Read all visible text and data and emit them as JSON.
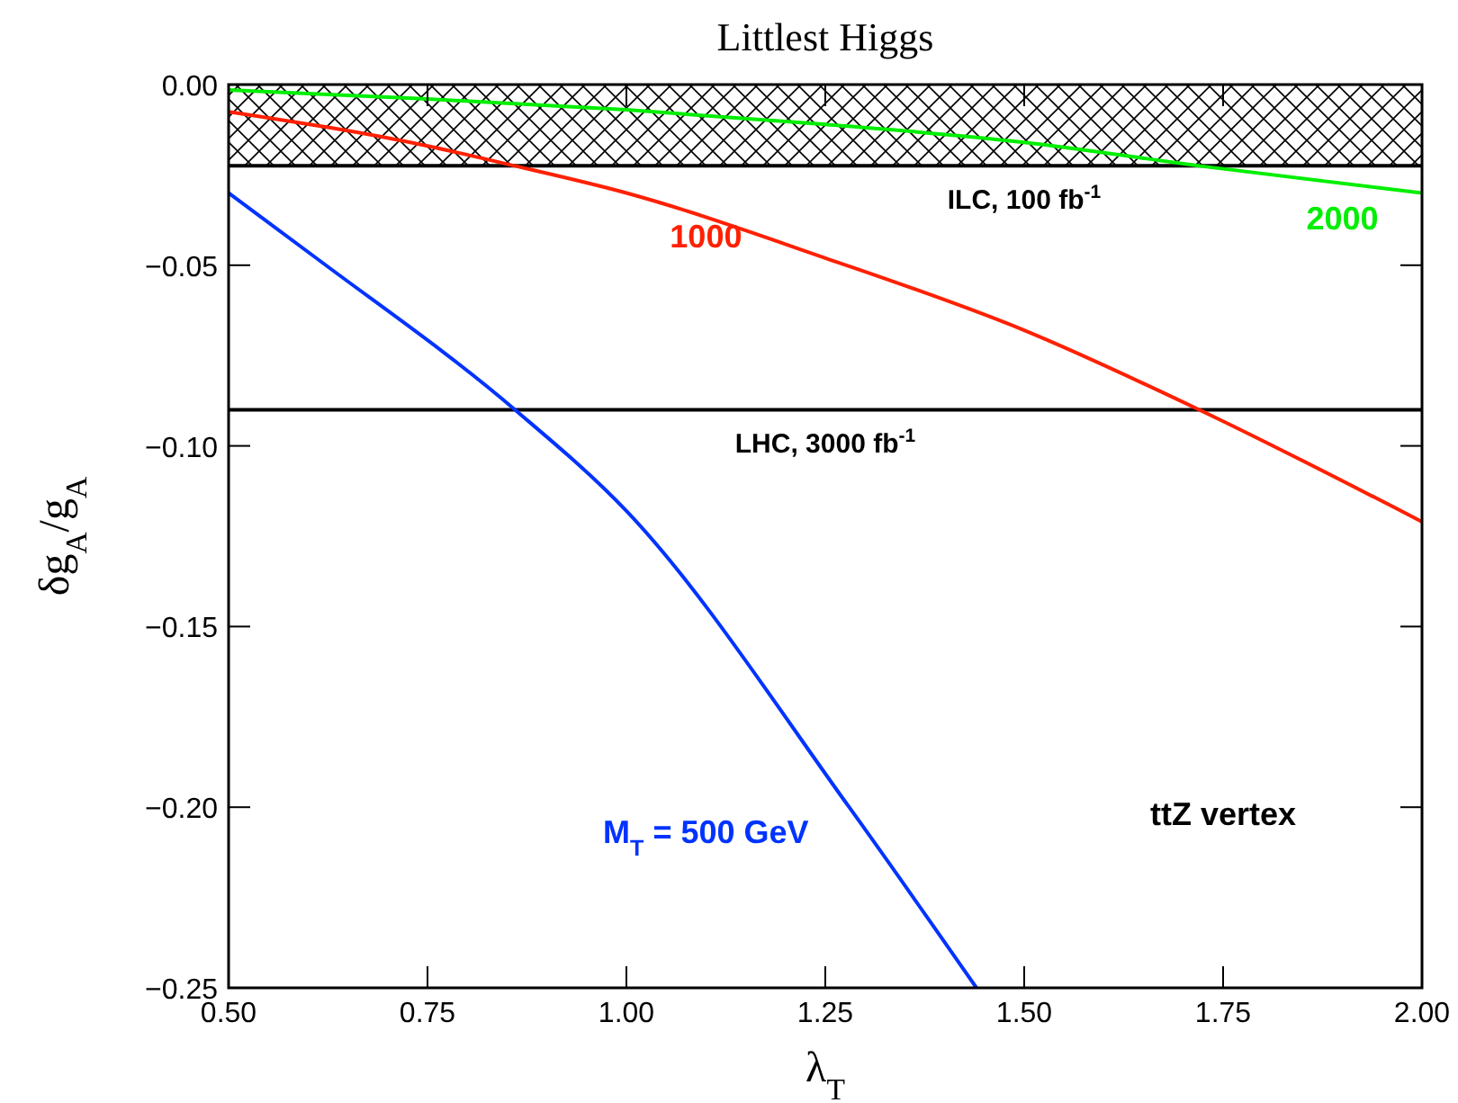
{
  "chart_data": {
    "type": "line",
    "title": "Littlest Higgs",
    "xlabel": "λ$_{T}$",
    "ylabel": "δg$_{A}$/g$_{A}$",
    "xlim": [
      0.5,
      2.0
    ],
    "ylim": [
      -0.25,
      0.0
    ],
    "xticks": [
      {
        "value": 0.5,
        "label": "0.50"
      },
      {
        "value": 0.75,
        "label": "0.75"
      },
      {
        "value": 1.0,
        "label": "1.00"
      },
      {
        "value": 1.25,
        "label": "1.25"
      },
      {
        "value": 1.5,
        "label": "1.50"
      },
      {
        "value": 1.75,
        "label": "1.75"
      },
      {
        "value": 2.0,
        "label": "2.00"
      }
    ],
    "yticks": [
      {
        "value": -0.25,
        "label": "−0.25"
      },
      {
        "value": -0.2,
        "label": "−0.20"
      },
      {
        "value": -0.15,
        "label": "−0.15"
      },
      {
        "value": -0.1,
        "label": "−0.10"
      },
      {
        "value": -0.05,
        "label": "−0.05"
      },
      {
        "value": 0,
        "label": "0.00"
      }
    ],
    "marker": "none",
    "line_style": "solid",
    "series": [
      {
        "name": "2000",
        "color": "#00ee00",
        "x": [
          0.5,
          0.75,
          1.0,
          1.25,
          1.5,
          1.72,
          2.0
        ],
        "values": [
          -0.0015,
          -0.004,
          -0.007,
          -0.011,
          -0.016,
          -0.0225,
          -0.03
        ]
      },
      {
        "name": "1000",
        "color": "#ff2000",
        "x": [
          0.5,
          0.75,
          0.85,
          1.0,
          1.25,
          1.5,
          1.72,
          2.0
        ],
        "values": [
          -0.0075,
          -0.017,
          -0.022,
          -0.03,
          -0.048,
          -0.068,
          -0.09,
          -0.121
        ]
      },
      {
        "name": "M$_{T}$ = 500 GeV",
        "color": "#0033ff",
        "x": [
          0.5,
          0.61,
          0.86,
          1.0,
          1.28,
          1.44
        ],
        "values": [
          -0.03,
          -0.048,
          -0.09,
          -0.118,
          -0.2,
          -0.25
        ]
      }
    ],
    "ref_lines": [
      {
        "axis": "y",
        "value": -0.0225,
        "label": "ILC, 100 fb$^{-1}$",
        "color": "#000000"
      },
      {
        "axis": "y",
        "value": -0.09,
        "label": "LHC, 3000 fb$^{-1}$",
        "color": "#000000"
      }
    ],
    "bands": [
      {
        "axis": "y",
        "from": -0.0225,
        "to": 0.0,
        "color": "#000000"
      }
    ],
    "annotations": [
      "ttZ vertex"
    ]
  }
}
